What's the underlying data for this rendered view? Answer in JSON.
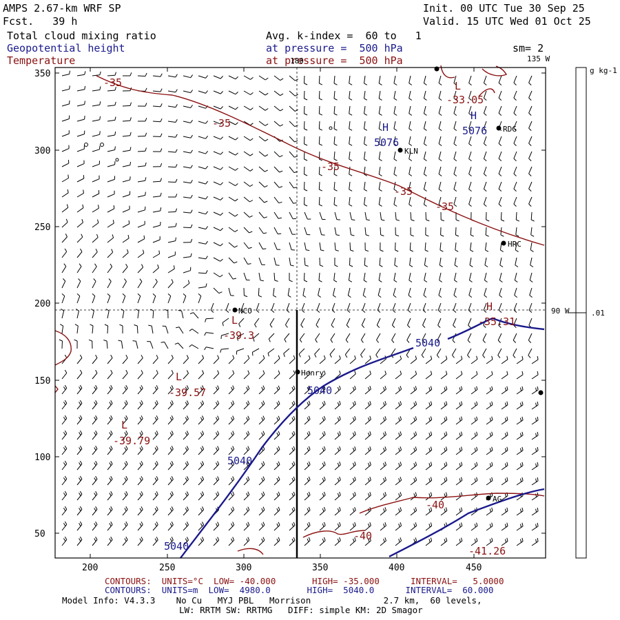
{
  "header": {
    "model": "AMPS 2.67-km WRF SP",
    "fcst": "Fcst.   39 h",
    "init": "Init. 00 UTC Tue 30 Sep 25",
    "valid": "Valid. 15 UTC Wed 01 Oct 25",
    "field1": "Total cloud mixing ratio",
    "field2": "Geopotential height",
    "field3": "Temperature",
    "avg": "Avg. k-index =  60 to   1",
    "pres1": "at pressure =  500 hPa",
    "pres2": "at pressure =  500 hPa",
    "sm": "sm= 2"
  },
  "map": {
    "y_ticks": [
      "350",
      "300",
      "250",
      "200",
      "150",
      "100",
      "50"
    ],
    "x_ticks": [
      "200",
      "250",
      "300",
      "350",
      "400",
      "450"
    ],
    "lon_top": "180",
    "lon_135": "135 W",
    "lon_90": "90 W",
    "stations": [
      "NCO",
      "Henry",
      "KLN",
      "RDG",
      "HRC",
      "AG"
    ],
    "centers": [
      {
        "letter": "L",
        "value": "-33.05",
        "color": "red"
      },
      {
        "letter": "H",
        "value": "5076",
        "color": "blue"
      },
      {
        "letter": "H",
        "value": "5076",
        "color": "blue"
      },
      {
        "letter": "L",
        "value": "-39.3",
        "color": "red"
      },
      {
        "letter": "L",
        "value": "-39.57",
        "color": "red"
      },
      {
        "letter": "L",
        "value": "-39.79",
        "color": "red"
      },
      {
        "letter": "H",
        "value": "-35.31",
        "color": "red"
      },
      {
        "letter": "",
        "value": "-41.26",
        "color": "red"
      }
    ],
    "temp_labels": [
      "-35",
      "-35",
      "-35",
      "-35",
      "-35",
      "-40",
      "-40"
    ],
    "height_labels": [
      "5040",
      "5040",
      "5040",
      "5040"
    ]
  },
  "colorbar": {
    "unit": "g kg-1",
    "value": ".01"
  },
  "footer": {
    "line1_red": "CONTOURS:  UNITS=°C  LOW= -40.000       HIGH= -35.000      INTERVAL=   5.0000",
    "line2_blue": "CONTOURS:  UNITS=m  LOW=  4980.0       HIGH=  5040.0      INTERVAL=  60.000",
    "line3": "Model Info: V4.3.3    No Cu   MYJ PBL   Morrison              2.7 km,  60 levels,",
    "line4": "LW: RRTM SW: RRTMG   DIFF: simple KM: 2D Smagor"
  },
  "colors": {
    "temperature": "#8b1010",
    "height": "#1a1a8c",
    "frame": "#000000"
  }
}
